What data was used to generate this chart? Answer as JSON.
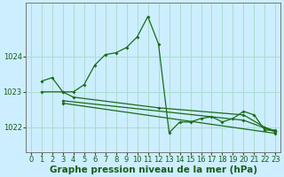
{
  "bg_color": "#cceeff",
  "grid_color": "#aaddcc",
  "line_color": "#1a6b1a",
  "xlim": [
    -0.5,
    23.5
  ],
  "ylim": [
    1021.3,
    1025.5
  ],
  "yticks": [
    1022,
    1023,
    1024
  ],
  "xticks": [
    0,
    1,
    2,
    3,
    4,
    5,
    6,
    7,
    8,
    9,
    10,
    11,
    12,
    13,
    14,
    15,
    16,
    17,
    18,
    19,
    20,
    21,
    22,
    23
  ],
  "xlabel": "Graphe pression niveau de la mer (hPa)",
  "series1": {
    "x": [
      1,
      2,
      3,
      4,
      5,
      6,
      7,
      8,
      9,
      10,
      11,
      12,
      13,
      14,
      15,
      16,
      17,
      18,
      19,
      20,
      21,
      22,
      23
    ],
    "y": [
      1023.3,
      1023.4,
      1023.0,
      1023.0,
      1023.2,
      1023.75,
      1024.05,
      1024.1,
      1024.25,
      1024.55,
      1025.12,
      1024.35,
      1021.85,
      1022.15,
      1022.15,
      1022.25,
      1022.3,
      1022.15,
      1022.25,
      1022.45,
      1022.35,
      1021.92,
      1021.92
    ]
  },
  "series2": {
    "x": [
      1,
      3,
      4,
      12,
      20,
      22,
      23
    ],
    "y": [
      1023.0,
      1023.0,
      1022.85,
      1022.55,
      1022.35,
      1022.0,
      1021.9
    ]
  },
  "series3": {
    "x": [
      3,
      20,
      23
    ],
    "y": [
      1022.75,
      1022.2,
      1021.87
    ]
  },
  "series4": {
    "x": [
      3,
      23
    ],
    "y": [
      1022.68,
      1021.83
    ]
  },
  "font_color": "#1a5c1a",
  "tick_fontsize": 6,
  "label_fontsize": 7.5
}
